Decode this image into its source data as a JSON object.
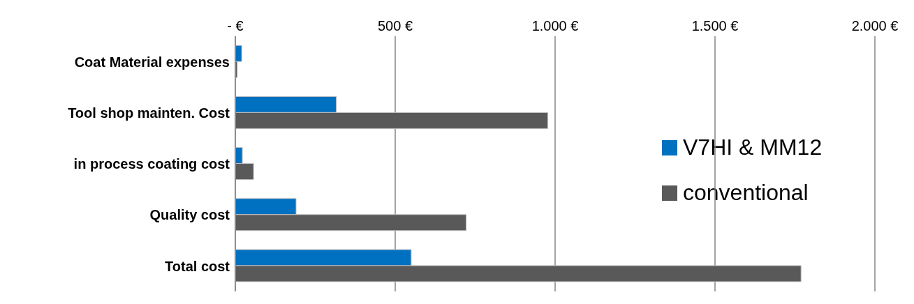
{
  "chart_data": {
    "type": "bar",
    "orientation": "horizontal",
    "categories": [
      "Coat Material expenses",
      "Tool shop  mainten. Cost",
      "in process coating cost",
      "Quality cost",
      "Total cost"
    ],
    "series": [
      {
        "name": "V7HI & MM12",
        "color": "#0070c0",
        "values": [
          20,
          316,
          22,
          190,
          550
        ]
      },
      {
        "name": "conventional",
        "color": "#595959",
        "values": [
          6,
          977,
          57,
          722,
          1769
        ]
      }
    ],
    "xlim": [
      0,
      2000
    ],
    "xticks": [
      {
        "value": 0,
        "label": "-   €"
      },
      {
        "value": 500,
        "label": "500 €"
      },
      {
        "value": 1000,
        "label": "1.000 €"
      },
      {
        "value": 1500,
        "label": "1.500 €"
      },
      {
        "value": 2000,
        "label": "2.000 €"
      }
    ],
    "grid": "x",
    "legend": "right"
  }
}
